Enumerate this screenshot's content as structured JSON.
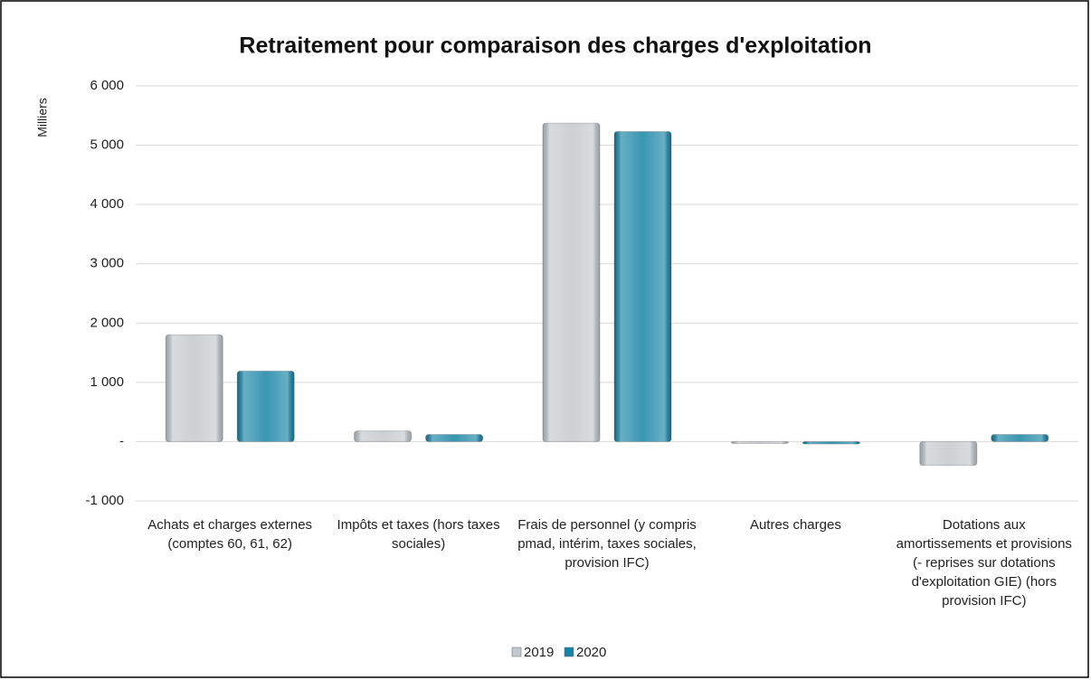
{
  "chart_data": {
    "type": "bar",
    "title": "Retraitement pour comparaison des charges d'exploitation",
    "y_axis_label": "Milliers",
    "categories": [
      "Achats et charges externes (comptes 60, 61, 62)",
      "Impôts et taxes (hors taxes sociales)",
      "Frais de personnel (y compris pmad, intérim, taxes sociales, provision IFC)",
      "Autres charges",
      "Dotations aux amortissements et provisions (- reprises sur dotations d'exploitation GIE) (hors provision IFC)"
    ],
    "series": [
      {
        "name": "2019",
        "color": "#c4c8cc",
        "values": [
          1800,
          180,
          5370,
          -30,
          -400
        ]
      },
      {
        "name": "2020",
        "color": "#1784a6",
        "values": [
          1190,
          120,
          5230,
          -40,
          120
        ]
      }
    ],
    "ylim": [
      -1000,
      6000
    ],
    "yticks": [
      {
        "value": -1000,
        "label": "-1 000"
      },
      {
        "value": 0,
        "label": "-"
      },
      {
        "value": 1000,
        "label": "1 000"
      },
      {
        "value": 2000,
        "label": "2 000"
      },
      {
        "value": 3000,
        "label": "3 000"
      },
      {
        "value": 4000,
        "label": "4 000"
      },
      {
        "value": 5000,
        "label": "5 000"
      },
      {
        "value": 6000,
        "label": "6 000"
      }
    ],
    "grid": true,
    "legend": "bottom"
  }
}
